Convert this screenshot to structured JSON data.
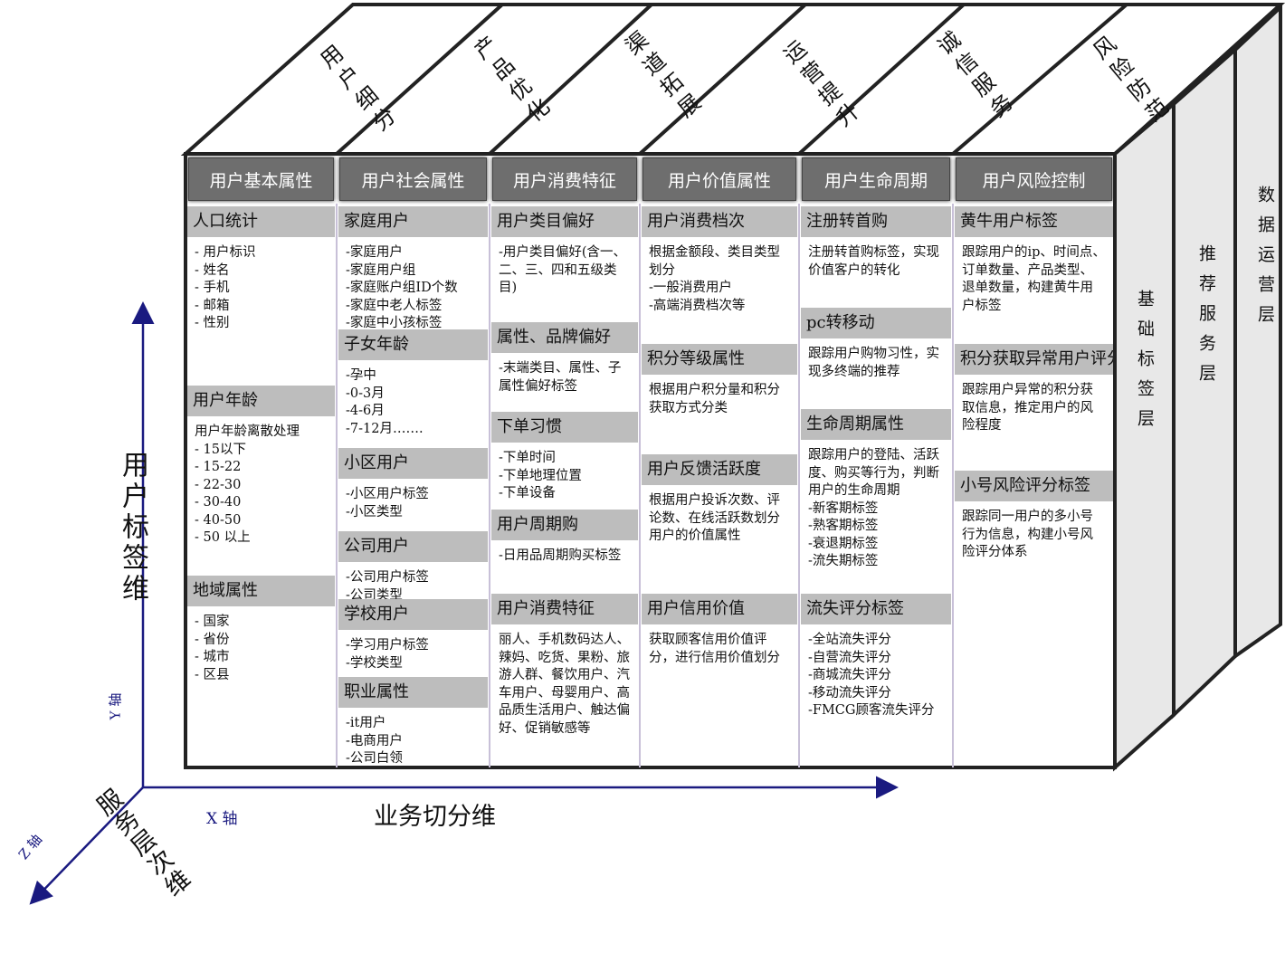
{
  "top_labels": [
    "用户细分",
    "产品优化",
    "渠道拓展",
    "运营提升",
    "诚信服务",
    "风险防范"
  ],
  "columns": [
    {
      "header": "用户基本属性",
      "sections": [
        {
          "title": "人口统计",
          "lines": [
            "- 用户标识",
            "- 姓名",
            "- 手机",
            "- 邮箱",
            "- 性别"
          ]
        },
        {
          "title": "用户年龄",
          "lines": [
            "用户年龄离散处理",
            "- 15以下",
            "- 15-22",
            "- 22-30",
            "- 30-40",
            "- 40-50",
            "- 50 以上"
          ]
        },
        {
          "title": "地域属性",
          "lines": [
            "- 国家",
            "- 省份",
            "- 城市",
            "- 区县"
          ]
        }
      ]
    },
    {
      "header": "用户社会属性",
      "sections": [
        {
          "title": "家庭用户",
          "lines": [
            "-家庭用户",
            "-家庭用户组",
            "-家庭账户组ID个数",
            "-家庭中老人标签",
            "-家庭中小孩标签"
          ]
        },
        {
          "title": "子女年龄",
          "lines": [
            "-孕中",
            "-0-3月",
            "-4-6月",
            "-7-12月……."
          ]
        },
        {
          "title": "小区用户",
          "lines": [
            "-小区用户标签",
            "-小区类型"
          ]
        },
        {
          "title": "公司用户",
          "lines": [
            "-公司用户标签",
            "-公司类型"
          ]
        },
        {
          "title": "学校用户",
          "lines": [
            "-学习用户标签",
            "-学校类型"
          ]
        },
        {
          "title": "职业属性",
          "lines": [
            "-it用户",
            "-电商用户",
            "-公司白领"
          ]
        }
      ]
    },
    {
      "header": "用户消费特征",
      "sections": [
        {
          "title": "用户类目偏好",
          "lines": [
            "-用户类目偏好(含一、二、三、四和五级类目)"
          ]
        },
        {
          "title": "属性、品牌偏好",
          "lines": [
            "-末端类目、属性、子属性偏好标签"
          ]
        },
        {
          "title": "下单习惯",
          "lines": [
            "-下单时间",
            "-下单地理位置",
            "-下单设备"
          ]
        },
        {
          "title": "用户周期购",
          "lines": [
            "-日用品周期购买标签"
          ]
        },
        {
          "title": "用户消费特征",
          "lines": [
            "丽人、手机数码达人、辣妈、吃货、果粉、旅游人群、餐饮用户、汽车用户、母婴用户、高品质生活用户、触达偏好、促销敏感等"
          ]
        }
      ]
    },
    {
      "header": "用户价值属性",
      "sections": [
        {
          "title": "用户消费档次",
          "lines": [
            "根据金额段、类目类型划分",
            "-一般消费用户",
            "-高端消费档次等"
          ]
        },
        {
          "title": "积分等级属性",
          "lines": [
            "根据用户积分量和积分获取方式分类"
          ]
        },
        {
          "title": "用户反馈活跃度",
          "lines": [
            "根据用户投诉次数、评论数、在线活跃数划分用户的价值属性"
          ]
        },
        {
          "title": "用户信用价值",
          "lines": [
            "获取顾客信用价值评分，进行信用价值划分"
          ]
        }
      ]
    },
    {
      "header": "用户生命周期",
      "sections": [
        {
          "title": "注册转首购",
          "lines": [
            "注册转首购标签，实现价值客户的转化"
          ]
        },
        {
          "title": "pc转移动",
          "lines": [
            "跟踪用户购物习性，实现多终端的推荐"
          ]
        },
        {
          "title": "生命周期属性",
          "lines": [
            "跟踪用户的登陆、活跃度、购买等行为，判断用户的生命周期",
            "-新客期标签",
            "-熟客期标签",
            "-衰退期标签",
            "-流失期标签"
          ]
        },
        {
          "title": "流失评分标签",
          "lines": [
            "-全站流失评分",
            "-自营流失评分",
            "-商城流失评分",
            "-移动流失评分",
            "-FMCG顾客流失评分"
          ]
        }
      ]
    },
    {
      "header": "用户风险控制",
      "sections": [
        {
          "title": "黄牛用户标签",
          "lines": [
            "跟踪用户的ip、时间点、订单数量、产品类型、退单数量，构建黄牛用户标签"
          ]
        },
        {
          "title": "积分获取异常用户评分标签",
          "lines": [
            "跟踪用户异常的积分获取信息，推定用户的风险程度"
          ]
        },
        {
          "title": "小号风险评分标签",
          "lines": [
            "跟踪同一用户的多小号行为信息，构建小号风险评分体系"
          ]
        }
      ]
    }
  ],
  "side_layers": [
    "基础标签层",
    "推荐服务层",
    "数据运营层"
  ],
  "axes": {
    "y_label": "用户标签维",
    "y_tag": "Y 轴",
    "x_label": "业务切分维",
    "x_tag": "X 轴",
    "z_label": "服务层次维",
    "z_tag": "Z 轴"
  }
}
